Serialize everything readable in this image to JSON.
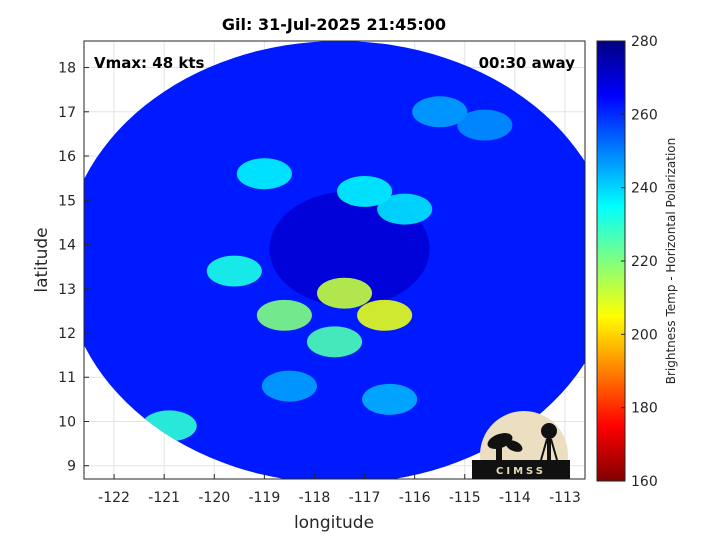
{
  "chart_data": {
    "type": "heatmap",
    "title": "Gil: 31-Jul-2025 21:45:00",
    "annotations": {
      "vmax": "Vmax: 48 kts",
      "time_away": "00:30 away"
    },
    "xlabel": "longitude",
    "ylabel": "latitude",
    "xlim": [
      -122.6,
      -112.6
    ],
    "ylim": [
      8.7,
      18.6
    ],
    "xticks": [
      -122,
      -121,
      -120,
      -119,
      -118,
      -117,
      -116,
      -115,
      -114,
      -113
    ],
    "yticks": [
      9,
      10,
      11,
      12,
      13,
      14,
      15,
      16,
      17,
      18
    ],
    "grid": true,
    "colorbar": {
      "label": "Brightness Temp - Horizontal Polarization",
      "min": 160,
      "max": 280,
      "ticks": [
        160,
        180,
        200,
        220,
        240,
        260,
        280
      ],
      "colormap": [
        "#800000",
        "#ff0000",
        "#ff8000",
        "#ffff00",
        "#80ff80",
        "#00ffff",
        "#0080ff",
        "#0000ff",
        "#000080"
      ]
    },
    "swath": {
      "center_lon": -117.5,
      "center_lat": 13.6,
      "background_tb": 262
    },
    "storm": {
      "eye_lon": -117.3,
      "eye_lat": 13.9,
      "min_tb": 206,
      "features": [
        {
          "lon": -116.6,
          "lat": 12.4,
          "tb": 208
        },
        {
          "lon": -117.4,
          "lat": 12.9,
          "tb": 212
        },
        {
          "lon": -118.6,
          "lat": 12.4,
          "tb": 220
        },
        {
          "lon": -117.6,
          "lat": 11.8,
          "tb": 226
        },
        {
          "lon": -119.6,
          "lat": 13.4,
          "tb": 232
        },
        {
          "lon": -117.0,
          "lat": 15.2,
          "tb": 236
        },
        {
          "lon": -116.2,
          "lat": 14.8,
          "tb": 238
        },
        {
          "lon": -119.0,
          "lat": 15.6,
          "tb": 236
        },
        {
          "lon": -116.5,
          "lat": 10.5,
          "tb": 244
        },
        {
          "lon": -118.5,
          "lat": 10.8,
          "tb": 246
        },
        {
          "lon": -120.9,
          "lat": 9.9,
          "tb": 230
        },
        {
          "lon": -115.5,
          "lat": 17.0,
          "tb": 246
        },
        {
          "lon": -114.6,
          "lat": 16.7,
          "tb": 248
        }
      ]
    },
    "logo_text": "CIMSS"
  }
}
